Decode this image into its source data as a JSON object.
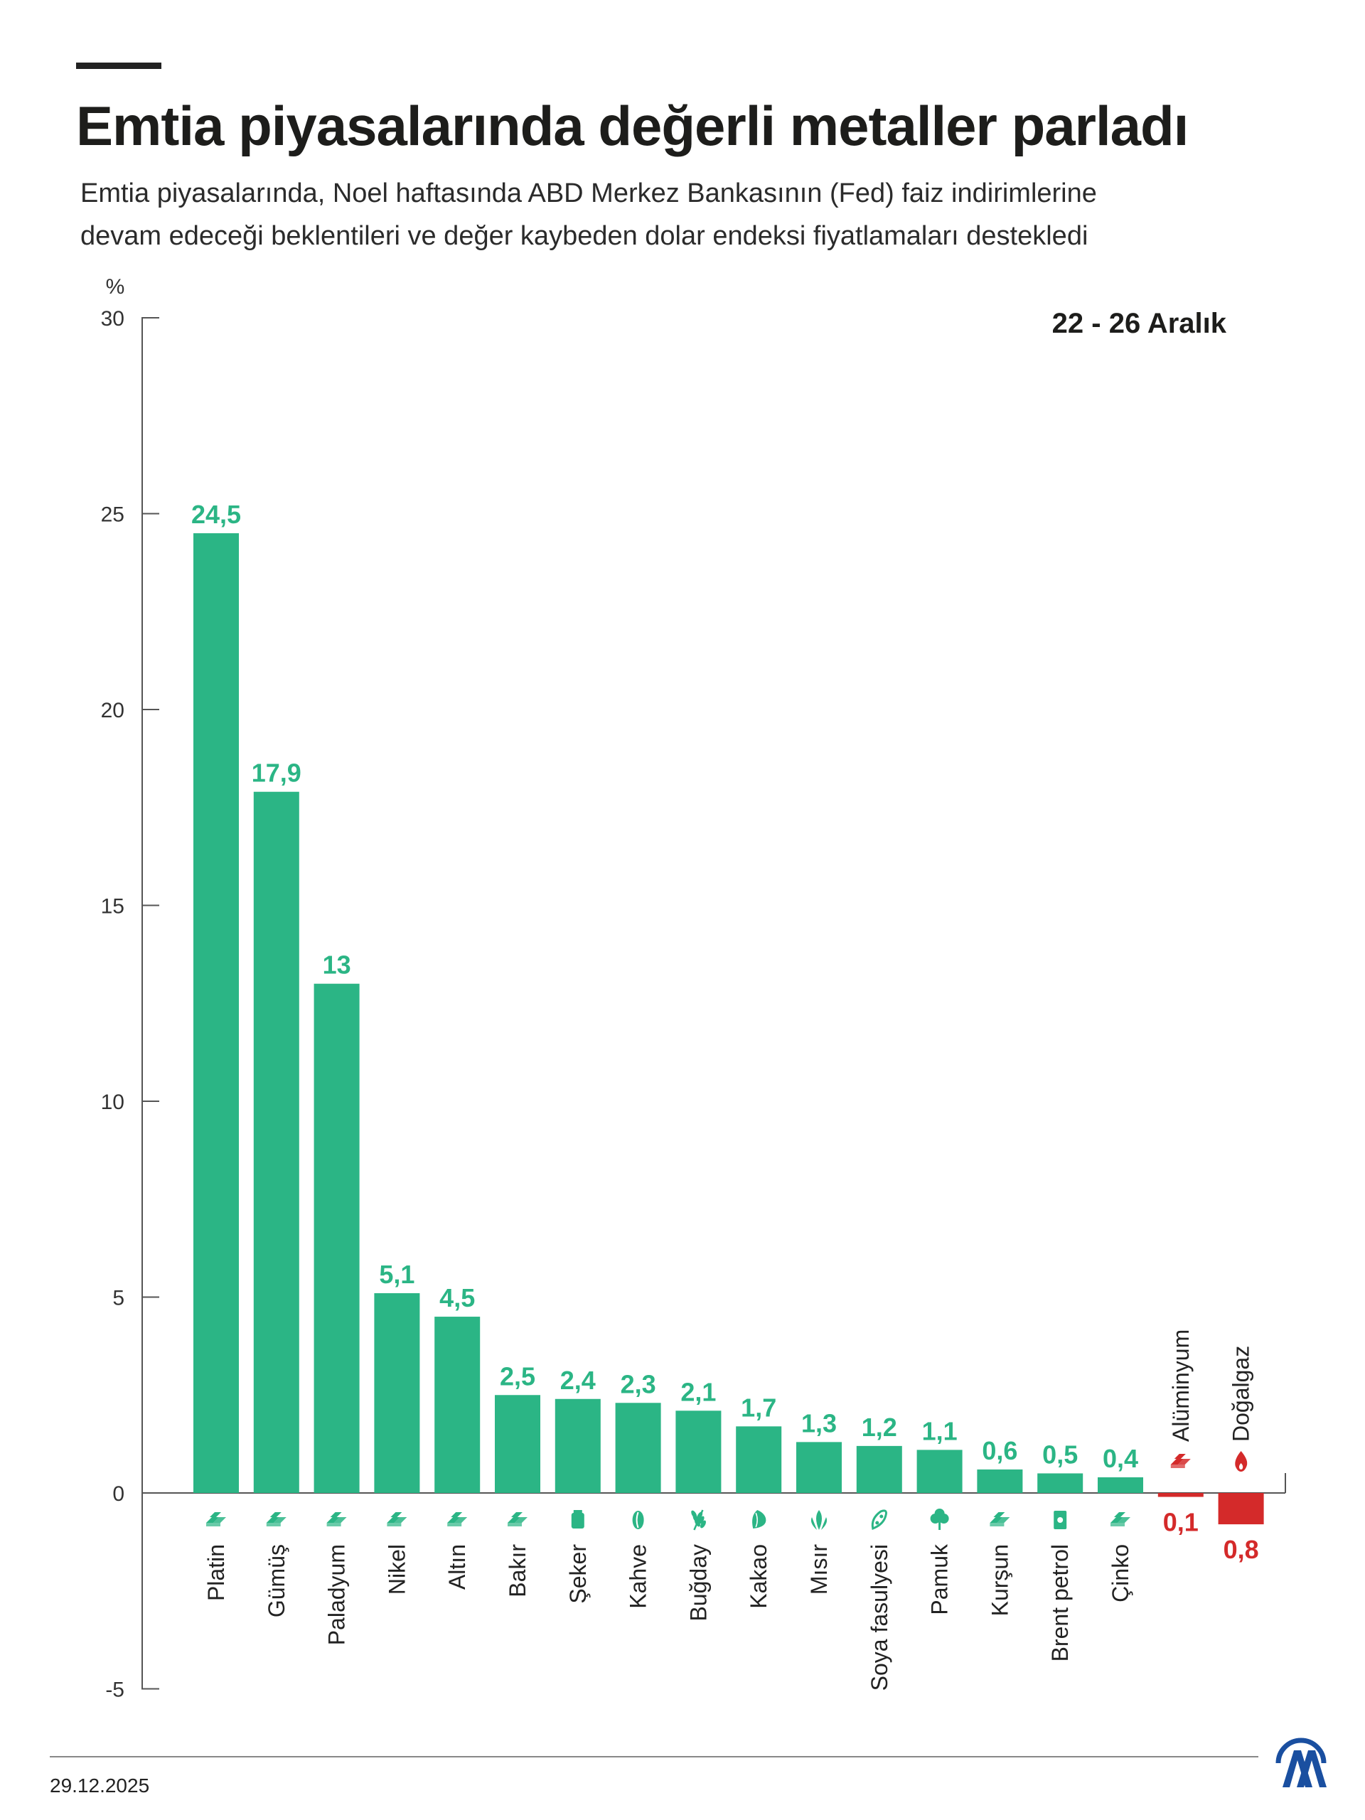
{
  "header": {
    "title": "Emtia piyasalarında değerli metaller parladı",
    "subtitle_lines": [
      "Emtia piyasalarında, Noel haftasında ABD Merkez Bankasının (Fed) faiz indirimlerine",
      "devam edeceği beklentileri ve değer kaybeden dolar endeksi fiyatlamaları destekledi"
    ]
  },
  "footer": {
    "date": "29.12.2025"
  },
  "colors": {
    "positive": "#2bb585",
    "negative": "#d42a2a",
    "axis": "#555555"
  },
  "chart_data": {
    "type": "bar",
    "unit_label": "%",
    "period_label": "22 - 26 Aralık",
    "ylim": [
      -5,
      30
    ],
    "yticks": [
      "30",
      "25",
      "20",
      "15",
      "10",
      "5",
      "0",
      "-5"
    ],
    "ytick_values": [
      30,
      25,
      20,
      15,
      10,
      5,
      0,
      -5
    ],
    "grid": false,
    "categories": [
      "Platin",
      "Gümüş",
      "Paladyum",
      "Nikel",
      "Altın",
      "Bakır",
      "Şeker",
      "Kahve",
      "Buğday",
      "Kakao",
      "Mısır",
      "Soya fasulyesi",
      "Pamuk",
      "Kurşun",
      "Brent petrol",
      "Çinko",
      "Alüminyum",
      "Doğalgaz"
    ],
    "values": [
      24.5,
      17.9,
      13,
      5.1,
      4.5,
      2.5,
      2.4,
      2.3,
      2.1,
      1.7,
      1.3,
      1.2,
      1.1,
      0.6,
      0.5,
      0.4,
      -0.1,
      -0.8
    ],
    "value_labels": [
      "24,5",
      "17,9",
      "13",
      "5,1",
      "4,5",
      "2,5",
      "2,4",
      "2,3",
      "2,1",
      "1,7",
      "1,3",
      "1,2",
      "1,1",
      "0,6",
      "0,5",
      "0,4",
      "0,1",
      "0,8"
    ],
    "icons": [
      "metal-bars-icon",
      "metal-bars-icon",
      "metal-bars-icon",
      "metal-bars-icon",
      "metal-bars-icon",
      "metal-bars-icon",
      "sugar-bag-icon",
      "coffee-bean-icon",
      "wheat-icon",
      "cocoa-icon",
      "corn-icon",
      "soybean-icon",
      "cotton-icon",
      "metal-bars-icon",
      "oil-barrel-icon",
      "metal-bars-icon",
      "metal-bars-icon",
      "flame-icon"
    ]
  }
}
